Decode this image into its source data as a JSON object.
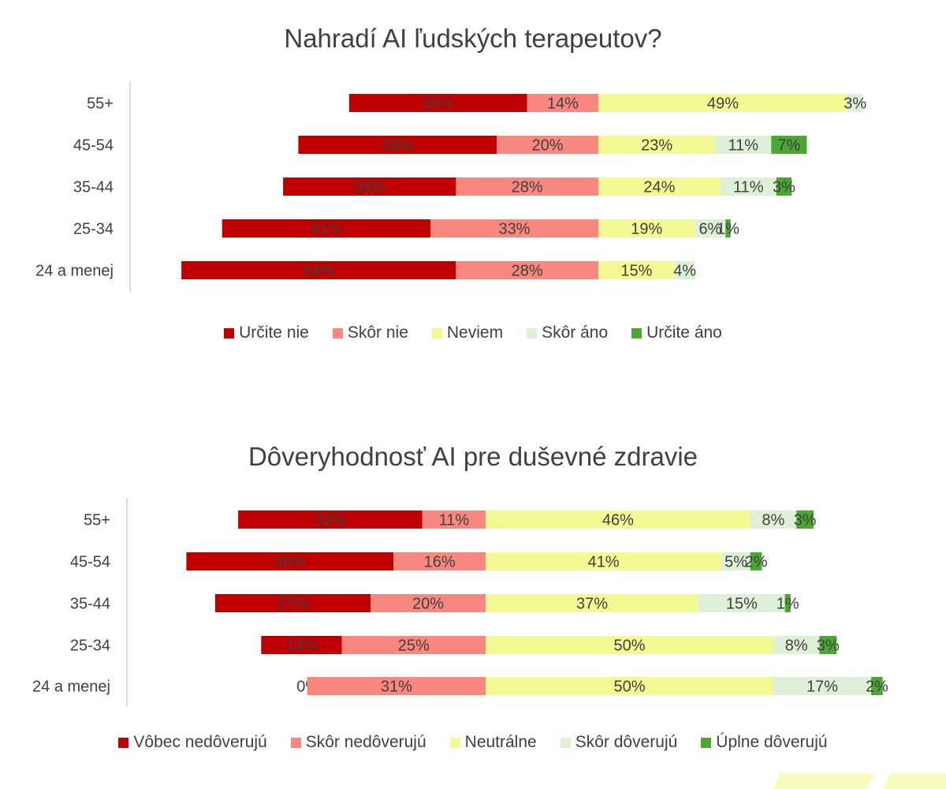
{
  "charts": [
    {
      "title": "Nahradí AI ľudských terapeutov?",
      "legend_labels": [
        "Určite nie",
        "Skôr nie",
        "Neviem",
        "Skôr áno",
        "Určite áno"
      ]
    },
    {
      "title": "Dôveryhodnosť AI pre duševné zdravie",
      "legend_labels": [
        "Vôbec nedôverujú",
        "Skôr nedôverujú",
        "Neutrálne",
        "Skôr dôverujú",
        "Úplne dôverujú"
      ]
    }
  ],
  "colors": [
    "#c00000",
    "#f8877f",
    "#f3f993",
    "#dff0d8",
    "#4aa832"
  ],
  "chart_data": [
    {
      "type": "bar",
      "orientation": "horizontal",
      "stacked": "diverging",
      "title": "Nahradí AI ľudských terapeutov?",
      "categories": [
        "55+",
        "45-54",
        "35-44",
        "25-34",
        "24 a menej"
      ],
      "series": [
        {
          "name": "Určite nie",
          "values": [
            35,
            39,
            34,
            41,
            54
          ],
          "labels": [
            "35%",
            "39%",
            "34%",
            "41%",
            "54%"
          ]
        },
        {
          "name": "Skôr nie",
          "values": [
            14,
            20,
            28,
            33,
            28
          ],
          "labels": [
            "14%",
            "20%",
            "28%",
            "33%",
            "28%"
          ]
        },
        {
          "name": "Neviem",
          "values": [
            49,
            23,
            24,
            19,
            15
          ],
          "labels": [
            "49%",
            "23%",
            "24%",
            "19%",
            "15%"
          ]
        },
        {
          "name": "Skôr áno",
          "values": [
            3,
            11,
            11,
            6,
            4
          ],
          "labels": [
            "3%",
            "11%",
            "11%",
            "6%",
            "4%"
          ]
        },
        {
          "name": "Určite áno",
          "values": [
            0,
            7,
            3,
            1,
            0
          ],
          "labels": [
            "",
            "7%",
            "3%",
            "1%",
            ""
          ]
        }
      ],
      "legend_position": "bottom"
    },
    {
      "type": "bar",
      "orientation": "horizontal",
      "stacked": "diverging",
      "title": "Dôveryhodnosť AI pre duševné zdravie",
      "categories": [
        "55+",
        "45-54",
        "35-44",
        "25-34",
        "24 a menej"
      ],
      "series": [
        {
          "name": "Vôbec nedôverujú",
          "values": [
            32,
            36,
            27,
            14,
            0
          ],
          "labels": [
            "32%",
            "36%",
            "27%",
            "14%",
            "0%"
          ]
        },
        {
          "name": "Skôr nedôverujú",
          "values": [
            11,
            16,
            20,
            25,
            31
          ],
          "labels": [
            "11%",
            "16%",
            "20%",
            "25%",
            "31%"
          ]
        },
        {
          "name": "Neutrálne",
          "values": [
            46,
            41,
            37,
            50,
            50
          ],
          "labels": [
            "46%",
            "41%",
            "37%",
            "50%",
            "50%"
          ]
        },
        {
          "name": "Skôr dôverujú",
          "values": [
            8,
            5,
            15,
            8,
            17
          ],
          "labels": [
            "8%",
            "5%",
            "15%",
            "8%",
            "17%"
          ]
        },
        {
          "name": "Úplne dôverujú",
          "values": [
            3,
            2,
            1,
            3,
            2
          ],
          "labels": [
            "3%",
            "2%",
            "1%",
            "3%",
            "2%"
          ]
        }
      ],
      "legend_position": "bottom"
    }
  ]
}
